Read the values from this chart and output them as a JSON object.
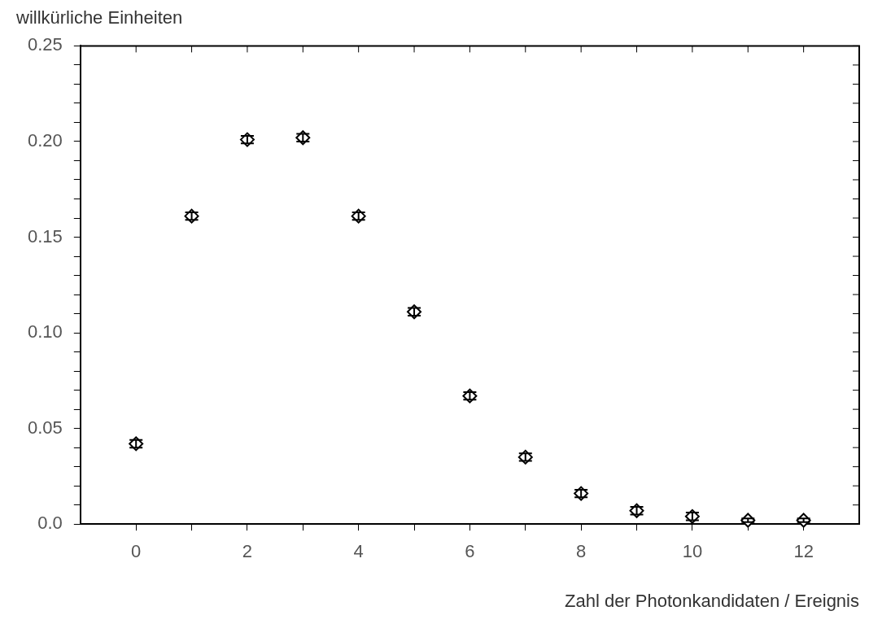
{
  "chart_data": {
    "type": "scatter",
    "ylabel": "willkürliche Einheiten",
    "xlabel": "Zahl der Photonkandidaten / Ereignis",
    "x": [
      0,
      1,
      2,
      3,
      4,
      5,
      6,
      7,
      8,
      9,
      10,
      11,
      12
    ],
    "values": [
      0.042,
      0.161,
      0.201,
      0.202,
      0.161,
      0.111,
      0.067,
      0.035,
      0.016,
      0.007,
      0.004,
      0.002,
      0.002
    ],
    "errors": [
      0.002,
      0.002,
      0.002,
      0.002,
      0.002,
      0.002,
      0.002,
      0.002,
      0.002,
      0.002,
      0.002,
      0.001,
      0.001
    ],
    "color": "#000000",
    "marker": "diamond",
    "xlim": [
      -1,
      13
    ],
    "xticks": [
      0,
      {
        "value": 1,
        "label": null
      },
      2,
      {
        "value": 3,
        "label": null
      },
      4,
      {
        "value": 5,
        "label": null
      },
      6,
      {
        "value": 7,
        "label": null
      },
      8,
      {
        "value": 9,
        "label": null
      },
      10,
      {
        "value": 11,
        "label": null
      },
      12
    ],
    "ylim": [
      0,
      0.25
    ],
    "yticks": [
      {
        "value": 0,
        "label": "0.0"
      },
      {
        "value": 0.01,
        "label": null
      },
      {
        "value": 0.02,
        "label": null
      },
      {
        "value": 0.03,
        "label": null
      },
      {
        "value": 0.04,
        "label": null
      },
      0.05,
      {
        "value": 0.06,
        "label": null
      },
      {
        "value": 0.07,
        "label": null
      },
      {
        "value": 0.08,
        "label": null
      },
      {
        "value": 0.09,
        "label": null
      },
      {
        "value": 0.1,
        "label": "0.10"
      },
      {
        "value": 0.11,
        "label": null
      },
      {
        "value": 0.12,
        "label": null
      },
      {
        "value": 0.13,
        "label": null
      },
      {
        "value": 0.14,
        "label": null
      },
      0.15,
      {
        "value": 0.16,
        "label": null
      },
      {
        "value": 0.17,
        "label": null
      },
      {
        "value": 0.18,
        "label": null
      },
      {
        "value": 0.19,
        "label": null
      },
      {
        "value": 0.2,
        "label": "0.20"
      },
      {
        "value": 0.21,
        "label": null
      },
      {
        "value": 0.22,
        "label": null
      },
      {
        "value": 0.23,
        "label": null
      },
      {
        "value": 0.24,
        "label": null
      },
      0.25
    ],
    "grid": false
  }
}
